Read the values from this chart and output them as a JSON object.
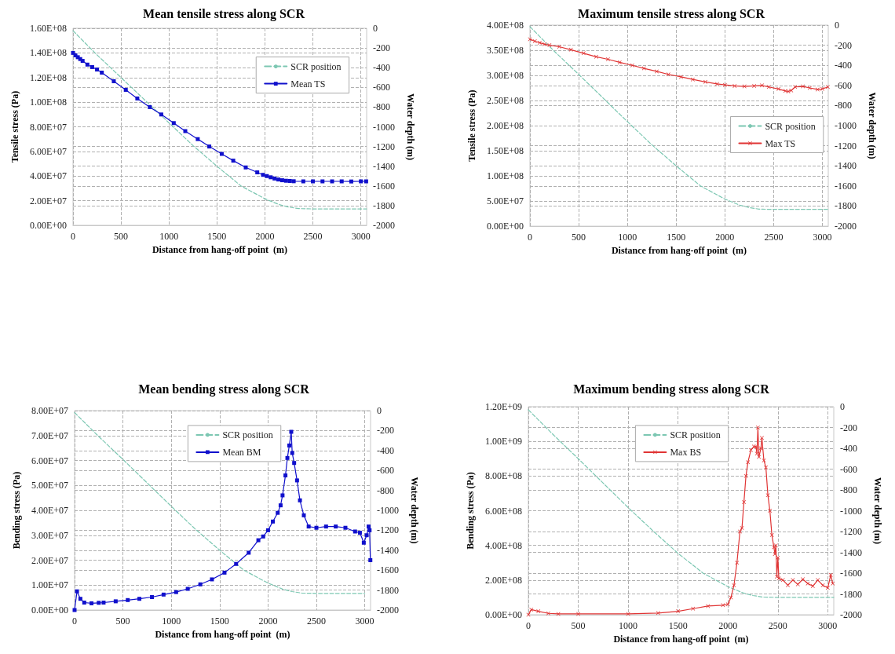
{
  "chart_data": [
    {
      "type": "line",
      "title": "Mean tensile stress along SCR",
      "xlabel": "Distance from hang-off point  (m)",
      "ylabel": "Tensile stress (Pa)",
      "y2label": "Water depth (m)",
      "xlim": [
        0,
        3060
      ],
      "xticks": [
        0,
        500,
        1000,
        1500,
        2000,
        2500,
        3000
      ],
      "ylim": [
        0,
        160000000
      ],
      "yticks": [
        {
          "value": 0,
          "label": "0.00E+00"
        },
        {
          "value": 20000000,
          "label": "2.00E+07"
        },
        {
          "value": 40000000,
          "label": "4.00E+07"
        },
        {
          "value": 60000000,
          "label": "6.00E+07"
        },
        {
          "value": 80000000,
          "label": "8.00E+07"
        },
        {
          "value": 100000000,
          "label": "1.00E+08"
        },
        {
          "value": 120000000,
          "label": "1.20E+08"
        },
        {
          "value": 140000000,
          "label": "1.40E+08"
        },
        {
          "value": 160000000,
          "label": "1.60E+08"
        }
      ],
      "y2lim": [
        -2000,
        0
      ],
      "y2ticks": [
        -2000,
        -1800,
        -1600,
        -1400,
        -1200,
        -1000,
        -800,
        -600,
        -400,
        -200,
        0
      ],
      "grid": true,
      "legend": "top right",
      "series": [
        {
          "name": "SCR position",
          "color": "#7cc7b2",
          "axis": "y2",
          "line_style": "dashed",
          "marker": "none",
          "x": [
            0,
            250,
            500,
            750,
            1000,
            1250,
            1500,
            1750,
            2000,
            2150,
            2250,
            2350,
            2500,
            3060
          ],
          "values": [
            -25,
            -270,
            -500,
            -730,
            -960,
            -1190,
            -1400,
            -1600,
            -1730,
            -1790,
            -1815,
            -1830,
            -1833,
            -1833
          ]
        },
        {
          "name": "Mean TS",
          "color": "#1010cc",
          "line_style": "solid",
          "marker": "square",
          "x": [
            0,
            25,
            50,
            75,
            100,
            150,
            200,
            250,
            300,
            425,
            550,
            670,
            800,
            920,
            1050,
            1170,
            1300,
            1420,
            1550,
            1670,
            1800,
            1920,
            1980,
            2020,
            2060,
            2100,
            2140,
            2180,
            2220,
            2260,
            2300,
            2400,
            2500,
            2600,
            2700,
            2800,
            2900,
            3000,
            3055
          ],
          "values": [
            140000000,
            138000000,
            136500000,
            135000000,
            133500000,
            130500000,
            128500000,
            126500000,
            124000000,
            117000000,
            110000000,
            103000000,
            96000000,
            90000000,
            83000000,
            76500000,
            70000000,
            64000000,
            58000000,
            52500000,
            47000000,
            43000000,
            41000000,
            40000000,
            39000000,
            38000000,
            37200000,
            36600000,
            36200000,
            36000000,
            35800000,
            35700000,
            35700000,
            35700000,
            35700000,
            35700000,
            35600000,
            35700000,
            35700000
          ]
        }
      ]
    },
    {
      "type": "line",
      "title": "Maximum tensile stress along SCR",
      "xlabel": "Distance from hang-off point  (m)",
      "ylabel": "Tensile stress (Pa)",
      "y2label": "Water depth (m)",
      "xlim": [
        0,
        3060
      ],
      "xticks": [
        0,
        500,
        1000,
        1500,
        2000,
        2500,
        3000
      ],
      "ylim": [
        0,
        400000000
      ],
      "yticks": [
        {
          "value": 0,
          "label": "0.00E+00"
        },
        {
          "value": 50000000,
          "label": "5.00E+07"
        },
        {
          "value": 100000000,
          "label": "1.00E+08"
        },
        {
          "value": 150000000,
          "label": "1.50E+08"
        },
        {
          "value": 200000000,
          "label": "2.00E+08"
        },
        {
          "value": 250000000,
          "label": "2.50E+08"
        },
        {
          "value": 300000000,
          "label": "3.00E+08"
        },
        {
          "value": 350000000,
          "label": "3.50E+08"
        },
        {
          "value": 400000000,
          "label": "4.00E+08"
        }
      ],
      "y2lim": [
        -2000,
        0
      ],
      "y2ticks": [
        -2000,
        -1800,
        -1600,
        -1400,
        -1200,
        -1000,
        -800,
        -600,
        -400,
        -200,
        0
      ],
      "grid": true,
      "legend": "right",
      "series": [
        {
          "name": "SCR position",
          "color": "#7cc7b2",
          "axis": "y2",
          "line_style": "dashed",
          "marker": "none",
          "x": [
            0,
            250,
            500,
            750,
            1000,
            1250,
            1500,
            1750,
            2000,
            2150,
            2250,
            2350,
            2500,
            3060
          ],
          "values": [
            -15,
            -260,
            -490,
            -725,
            -960,
            -1190,
            -1400,
            -1600,
            -1730,
            -1790,
            -1815,
            -1830,
            -1833,
            -1833
          ]
        },
        {
          "name": "Max TS",
          "color": "#e03434",
          "line_style": "solid",
          "marker": "cross",
          "x": [
            0,
            50,
            100,
            150,
            200,
            300,
            420,
            550,
            680,
            800,
            920,
            1050,
            1170,
            1300,
            1420,
            1550,
            1670,
            1800,
            1920,
            2000,
            2100,
            2200,
            2300,
            2380,
            2450,
            2550,
            2620,
            2650,
            2680,
            2720,
            2800,
            2870,
            2950,
            3000,
            3055
          ],
          "values": [
            372000000,
            368000000,
            365000000,
            362000000,
            360000000,
            357000000,
            351000000,
            344000000,
            337000000,
            332000000,
            326000000,
            320000000,
            314000000,
            308000000,
            302000000,
            297000000,
            292000000,
            287000000,
            283000000,
            281000000,
            279000000,
            278000000,
            279000000,
            280000000,
            277000000,
            273000000,
            269000000,
            268000000,
            270000000,
            277000000,
            278000000,
            275000000,
            272000000,
            273000000,
            277000000
          ]
        }
      ]
    },
    {
      "type": "line",
      "title": "Mean bending stress along SCR",
      "xlabel": "Distance from hang-off point  (m)",
      "ylabel": "Bending stress (Pa)",
      "y2label": "Water depth (m)",
      "xlim": [
        0,
        3060
      ],
      "xticks": [
        0,
        500,
        1000,
        1500,
        2000,
        2500,
        3000
      ],
      "ylim": [
        0,
        80000000
      ],
      "yticks": [
        {
          "value": 0,
          "label": "0.00E+00"
        },
        {
          "value": 10000000,
          "label": "1.00E+07"
        },
        {
          "value": 20000000,
          "label": "2.00E+07"
        },
        {
          "value": 30000000,
          "label": "3.00E+07"
        },
        {
          "value": 40000000,
          "label": "4.00E+07"
        },
        {
          "value": 50000000,
          "label": "5.00E+07"
        },
        {
          "value": 60000000,
          "label": "6.00E+07"
        },
        {
          "value": 70000000,
          "label": "7.00E+07"
        },
        {
          "value": 80000000,
          "label": "8.00E+07"
        }
      ],
      "y2lim": [
        -2000,
        0
      ],
      "y2ticks": [
        -2000,
        -1800,
        -1600,
        -1400,
        -1200,
        -1000,
        -800,
        -600,
        -400,
        -200,
        0
      ],
      "grid": true,
      "legend": "top",
      "series": [
        {
          "name": "SCR position",
          "color": "#7cc7b2",
          "axis": "y2",
          "line_style": "dashed",
          "marker": "none",
          "x": [
            0,
            250,
            500,
            750,
            1000,
            1250,
            1500,
            1750,
            2000,
            2150,
            2250,
            2350,
            2500,
            3000
          ],
          "values": [
            -20,
            -260,
            -490,
            -725,
            -960,
            -1190,
            -1400,
            -1600,
            -1730,
            -1790,
            -1815,
            -1830,
            -1833,
            -1833
          ]
        },
        {
          "name": "Mean BM",
          "color": "#1010cc",
          "line_style": "solid",
          "marker": "square",
          "x": [
            0,
            25,
            60,
            100,
            175,
            250,
            300,
            425,
            550,
            670,
            800,
            920,
            1050,
            1170,
            1300,
            1420,
            1550,
            1670,
            1800,
            1900,
            1950,
            2000,
            2050,
            2100,
            2130,
            2150,
            2180,
            2200,
            2220,
            2240,
            2250,
            2270,
            2300,
            2330,
            2370,
            2420,
            2500,
            2600,
            2700,
            2800,
            2900,
            2950,
            2990,
            3020,
            3040,
            3050,
            3058
          ],
          "values": [
            0,
            7500000,
            4500000,
            3000000,
            2700000,
            2900000,
            3000000,
            3500000,
            4000000,
            4500000,
            5200000,
            6200000,
            7200000,
            8500000,
            10300000,
            12300000,
            15000000,
            18500000,
            23000000,
            28000000,
            29500000,
            32000000,
            35500000,
            39000000,
            42000000,
            46000000,
            54000000,
            61000000,
            66000000,
            71500000,
            63000000,
            59000000,
            52000000,
            44000000,
            38000000,
            33500000,
            33000000,
            33500000,
            33500000,
            33000000,
            31500000,
            31000000,
            27000000,
            30000000,
            33500000,
            32000000,
            20000000
          ]
        }
      ]
    },
    {
      "type": "line",
      "title": "Maximum bending stress along SCR",
      "xlabel": "Distance from hang-off point  (m)",
      "ylabel": "Bending stress (Pa)",
      "y2label": "Water depth (m)",
      "xlim": [
        0,
        3060
      ],
      "xticks": [
        0,
        500,
        1000,
        1500,
        2000,
        2500,
        3000
      ],
      "ylim": [
        0,
        1200000000
      ],
      "yticks": [
        {
          "value": 0,
          "label": "0.00E+00"
        },
        {
          "value": 200000000,
          "label": "2.00E+08"
        },
        {
          "value": 400000000,
          "label": "4.00E+08"
        },
        {
          "value": 600000000,
          "label": "6.00E+08"
        },
        {
          "value": 800000000,
          "label": "8.00E+08"
        },
        {
          "value": 1000000000,
          "label": "1.00E+09"
        },
        {
          "value": 1200000000,
          "label": "1.20E+09"
        }
      ],
      "y2lim": [
        -2000,
        0
      ],
      "y2ticks": [
        -2000,
        -1800,
        -1600,
        -1400,
        -1200,
        -1000,
        -800,
        -600,
        -400,
        -200,
        0
      ],
      "grid": true,
      "legend": "top",
      "series": [
        {
          "name": "SCR position",
          "color": "#7cc7b2",
          "axis": "y2",
          "line_style": "dashed",
          "marker": "none",
          "x": [
            0,
            250,
            500,
            750,
            1000,
            1250,
            1500,
            1750,
            2000,
            2150,
            2250,
            2350,
            2500,
            3060
          ],
          "values": [
            -30,
            -270,
            -500,
            -735,
            -970,
            -1195,
            -1410,
            -1600,
            -1730,
            -1790,
            -1815,
            -1830,
            -1833,
            -1833
          ]
        },
        {
          "name": "Max BS",
          "color": "#e03434",
          "line_style": "solid",
          "marker": "cross",
          "x": [
            0,
            30,
            100,
            200,
            300,
            500,
            1000,
            1300,
            1500,
            1650,
            1800,
            1950,
            2000,
            2030,
            2060,
            2090,
            2120,
            2140,
            2160,
            2180,
            2200,
            2230,
            2260,
            2280,
            2290,
            2300,
            2310,
            2330,
            2340,
            2360,
            2380,
            2400,
            2420,
            2440,
            2460,
            2470,
            2480,
            2490,
            2500,
            2510,
            2550,
            2600,
            2650,
            2700,
            2750,
            2800,
            2850,
            2900,
            2950,
            3000,
            3030,
            3050
          ],
          "values": [
            0,
            30000000,
            20000000,
            8000000,
            5000000,
            5000000,
            5000000,
            10000000,
            20000000,
            35000000,
            50000000,
            55000000,
            60000000,
            100000000,
            170000000,
            300000000,
            480000000,
            500000000,
            650000000,
            800000000,
            880000000,
            950000000,
            970000000,
            970000000,
            930000000,
            1080000000,
            910000000,
            960000000,
            1020000000,
            890000000,
            850000000,
            690000000,
            600000000,
            460000000,
            390000000,
            350000000,
            400000000,
            220000000,
            330000000,
            210000000,
            200000000,
            170000000,
            200000000,
            175000000,
            205000000,
            180000000,
            165000000,
            200000000,
            170000000,
            155000000,
            230000000,
            180000000
          ]
        }
      ]
    }
  ]
}
